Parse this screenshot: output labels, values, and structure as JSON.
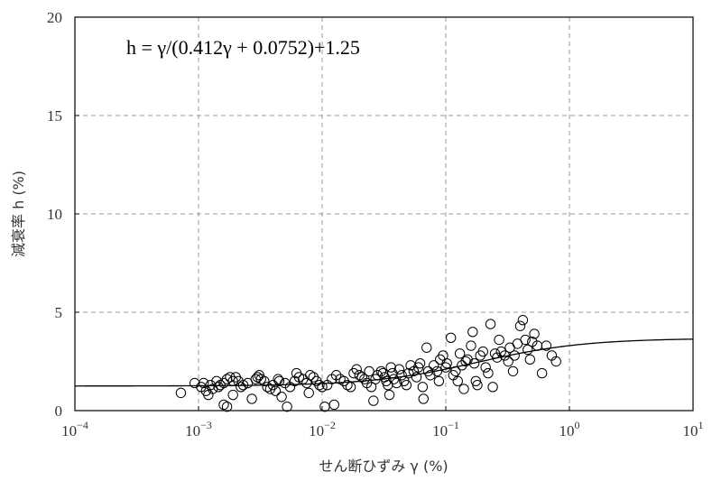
{
  "chart_data": {
    "type": "scatter",
    "title": "",
    "xlabel": "せん断ひずみ γ (%)",
    "ylabel": "減衰率 h (%)",
    "xscale": "log",
    "xlim": [
      0.0001,
      10
    ],
    "ylim": [
      0,
      20
    ],
    "x_ticks": [
      {
        "value": 0.0001,
        "base": "10",
        "exp": "−4"
      },
      {
        "value": 0.001,
        "base": "10",
        "exp": "−3"
      },
      {
        "value": 0.01,
        "base": "10",
        "exp": "−2"
      },
      {
        "value": 0.1,
        "base": "10",
        "exp": "−1"
      },
      {
        "value": 1,
        "base": "10",
        "exp": "0"
      },
      {
        "value": 10,
        "base": "10",
        "exp": "1"
      }
    ],
    "y_ticks": [
      "0",
      "5",
      "10",
      "15",
      "20"
    ],
    "grid": true,
    "annotation": "h = γ/(0.412γ + 0.0752)+1.25",
    "fit_curve": {
      "a": 0.412,
      "b": 0.0752,
      "c": 1.25
    },
    "series": [
      {
        "marker": "circle",
        "points": [
          [
            0.00072,
            0.9
          ],
          [
            0.00093,
            1.4
          ],
          [
            0.00105,
            1.2
          ],
          [
            0.0011,
            1.4
          ],
          [
            0.00115,
            1.0
          ],
          [
            0.0012,
            0.8
          ],
          [
            0.00125,
            1.3
          ],
          [
            0.0013,
            1.1
          ],
          [
            0.0014,
            1.5
          ],
          [
            0.00145,
            1.2
          ],
          [
            0.0015,
            1.3
          ],
          [
            0.0016,
            1.4
          ],
          [
            0.0017,
            1.6
          ],
          [
            0.0018,
            1.7
          ],
          [
            0.0019,
            1.5
          ],
          [
            0.0016,
            0.3
          ],
          [
            0.0017,
            0.2
          ],
          [
            0.0019,
            0.8
          ],
          [
            0.002,
            1.7
          ],
          [
            0.0021,
            1.5
          ],
          [
            0.0022,
            1.2
          ],
          [
            0.0023,
            1.3
          ],
          [
            0.0025,
            1.4
          ],
          [
            0.0027,
            0.6
          ],
          [
            0.0029,
            1.6
          ],
          [
            0.003,
            1.7
          ],
          [
            0.0031,
            1.8
          ],
          [
            0.0032,
            1.6
          ],
          [
            0.0034,
            1.5
          ],
          [
            0.0036,
            1.2
          ],
          [
            0.0038,
            1.1
          ],
          [
            0.004,
            1.3
          ],
          [
            0.0042,
            1.0
          ],
          [
            0.0044,
            1.6
          ],
          [
            0.0045,
            1.5
          ],
          [
            0.0047,
            0.7
          ],
          [
            0.005,
            1.4
          ],
          [
            0.0052,
            0.2
          ],
          [
            0.0055,
            1.2
          ],
          [
            0.006,
            1.5
          ],
          [
            0.0062,
            1.9
          ],
          [
            0.0065,
            1.7
          ],
          [
            0.007,
            1.6
          ],
          [
            0.0075,
            1.4
          ],
          [
            0.0078,
            0.9
          ],
          [
            0.008,
            1.8
          ],
          [
            0.0085,
            1.7
          ],
          [
            0.009,
            1.5
          ],
          [
            0.0095,
            1.3
          ],
          [
            0.01,
            1.2
          ],
          [
            0.0105,
            0.2
          ],
          [
            0.011,
            1.3
          ],
          [
            0.012,
            1.6
          ],
          [
            0.0125,
            0.3
          ],
          [
            0.013,
            1.8
          ],
          [
            0.014,
            1.6
          ],
          [
            0.015,
            1.5
          ],
          [
            0.016,
            1.3
          ],
          [
            0.017,
            1.2
          ],
          [
            0.018,
            1.9
          ],
          [
            0.019,
            2.1
          ],
          [
            0.02,
            1.8
          ],
          [
            0.021,
            1.7
          ],
          [
            0.022,
            1.6
          ],
          [
            0.023,
            1.4
          ],
          [
            0.024,
            2.0
          ],
          [
            0.025,
            1.2
          ],
          [
            0.026,
            0.5
          ],
          [
            0.027,
            1.6
          ],
          [
            0.028,
            1.8
          ],
          [
            0.03,
            2.0
          ],
          [
            0.031,
            1.9
          ],
          [
            0.032,
            1.7
          ],
          [
            0.033,
            1.5
          ],
          [
            0.034,
            1.3
          ],
          [
            0.035,
            0.8
          ],
          [
            0.036,
            2.2
          ],
          [
            0.037,
            1.9
          ],
          [
            0.038,
            1.6
          ],
          [
            0.04,
            1.4
          ],
          [
            0.042,
            2.1
          ],
          [
            0.044,
            1.8
          ],
          [
            0.046,
            1.5
          ],
          [
            0.048,
            1.3
          ],
          [
            0.05,
            1.9
          ],
          [
            0.052,
            2.3
          ],
          [
            0.055,
            2.0
          ],
          [
            0.058,
            1.7
          ],
          [
            0.06,
            2.2
          ],
          [
            0.062,
            2.4
          ],
          [
            0.065,
            1.2
          ],
          [
            0.066,
            0.6
          ],
          [
            0.07,
            3.2
          ],
          [
            0.072,
            2.0
          ],
          [
            0.075,
            1.8
          ],
          [
            0.08,
            2.3
          ],
          [
            0.085,
            2.0
          ],
          [
            0.088,
            1.5
          ],
          [
            0.09,
            2.6
          ],
          [
            0.095,
            2.8
          ],
          [
            0.1,
            2.2
          ],
          [
            0.102,
            2.4
          ],
          [
            0.11,
            3.7
          ],
          [
            0.115,
            1.8
          ],
          [
            0.12,
            2.0
          ],
          [
            0.125,
            1.5
          ],
          [
            0.13,
            2.9
          ],
          [
            0.135,
            2.3
          ],
          [
            0.14,
            1.1
          ],
          [
            0.145,
            2.5
          ],
          [
            0.15,
            2.6
          ],
          [
            0.16,
            3.3
          ],
          [
            0.165,
            4.0
          ],
          [
            0.17,
            2.4
          ],
          [
            0.175,
            1.5
          ],
          [
            0.18,
            1.3
          ],
          [
            0.19,
            2.8
          ],
          [
            0.2,
            3.0
          ],
          [
            0.21,
            2.2
          ],
          [
            0.22,
            1.9
          ],
          [
            0.23,
            4.4
          ],
          [
            0.24,
            1.2
          ],
          [
            0.25,
            2.9
          ],
          [
            0.26,
            2.7
          ],
          [
            0.27,
            3.6
          ],
          [
            0.28,
            3.0
          ],
          [
            0.3,
            2.8
          ],
          [
            0.32,
            2.5
          ],
          [
            0.33,
            3.2
          ],
          [
            0.35,
            2.0
          ],
          [
            0.36,
            2.8
          ],
          [
            0.38,
            3.4
          ],
          [
            0.4,
            4.3
          ],
          [
            0.42,
            4.6
          ],
          [
            0.44,
            3.6
          ],
          [
            0.46,
            3.1
          ],
          [
            0.48,
            2.6
          ],
          [
            0.5,
            3.5
          ],
          [
            0.52,
            3.9
          ],
          [
            0.55,
            3.3
          ],
          [
            0.6,
            1.9
          ],
          [
            0.65,
            3.3
          ],
          [
            0.72,
            2.8
          ],
          [
            0.78,
            2.5
          ]
        ]
      }
    ]
  }
}
